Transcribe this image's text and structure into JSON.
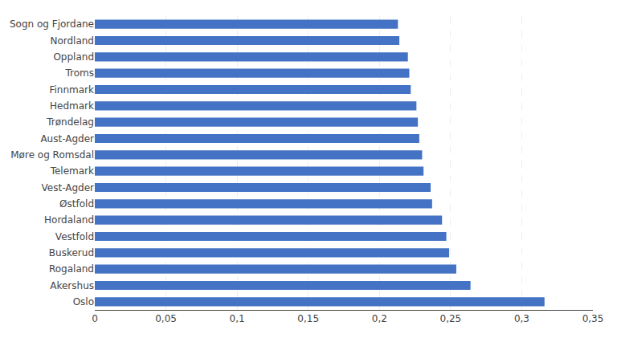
{
  "chart_data": {
    "type": "bar",
    "orientation": "horizontal",
    "categories": [
      "Oslo",
      "Akershus",
      "Rogaland",
      "Buskerud",
      "Vestfold",
      "Hordaland",
      "Østfold",
      "Vest-Agder",
      "Telemark",
      "Møre og Romsdal",
      "Aust-Agder",
      "Trøndelag",
      "Hedmark",
      "Finnmark",
      "Troms",
      "Oppland",
      "Nordland",
      "Sogn og Fjordane"
    ],
    "values": [
      0.316,
      0.264,
      0.254,
      0.249,
      0.247,
      0.244,
      0.237,
      0.236,
      0.231,
      0.23,
      0.228,
      0.227,
      0.226,
      0.222,
      0.221,
      0.22,
      0.214,
      0.213
    ],
    "color": "#4472C4",
    "xlim": [
      0,
      0.35
    ],
    "xticks": [
      0,
      {
        "value": 0.05,
        "label": "0,05"
      },
      {
        "value": 0.1,
        "label": "0,1"
      },
      {
        "value": 0.15,
        "label": "0,15"
      },
      {
        "value": 0.2,
        "label": "0,2"
      },
      {
        "value": 0.25,
        "label": "0,25"
      },
      {
        "value": 0.3,
        "label": "0,3"
      },
      {
        "value": 0.35,
        "label": "0,35"
      }
    ],
    "grid": true
  }
}
